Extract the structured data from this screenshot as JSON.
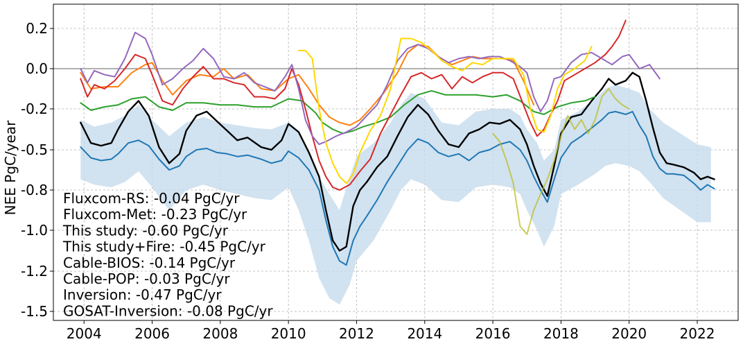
{
  "chart_data": {
    "type": "line",
    "title": "",
    "xlabel": "",
    "ylabel": "NEE PgC/year",
    "xlim": [
      2003.1,
      2023.2
    ],
    "ylim": [
      -1.56,
      0.32
    ],
    "x_ticks": [
      2004,
      2006,
      2008,
      2010,
      2012,
      2014,
      2016,
      2018,
      2020,
      2022
    ],
    "y_ticks": [
      {
        "value": 0.2,
        "label": "0.2"
      },
      {
        "value": 0.0,
        "label": "0.0"
      },
      {
        "value": -0.2,
        "label": "-0.2"
      },
      {
        "value": -0.5,
        "label": "-0.5"
      },
      {
        "value": -0.8,
        "label": "-0.8"
      },
      {
        "value": -1.0,
        "label": "-1.0"
      },
      {
        "value": -1.2,
        "label": "-1.2"
      },
      {
        "value": -1.5,
        "label": "-1.5"
      }
    ],
    "grid": true,
    "zero_line": true,
    "annotations": [
      "Fluxcom-RS: -0.04 PgC/yr",
      "Fluxcom-Met: -0.23 PgC/yr",
      "This study: -0.60 PgC/yr",
      "This study+Fire: -0.45 PgC/yr",
      "Cable-BIOS: -0.14 PgC/yr",
      "Cable-POP: -0.03 PgC/yr",
      "Inversion: -0.47 PgC/yr",
      "GOSAT-Inversion: -0.08 PgC/yr"
    ],
    "band": {
      "color": "#c6dbec",
      "x": [
        2003.9,
        2004.3,
        2004.8,
        2005.2,
        2005.6,
        2006.0,
        2006.5,
        2007.0,
        2007.5,
        2008.0,
        2008.5,
        2009.0,
        2009.5,
        2010.0,
        2010.3,
        2010.6,
        2010.9,
        2011.2,
        2011.5,
        2011.8,
        2012.0,
        2012.5,
        2013.0,
        2013.3,
        2013.6,
        2014.0,
        2014.5,
        2015.0,
        2015.5,
        2016.0,
        2016.5,
        2016.8,
        2017.0,
        2017.3,
        2017.5,
        2017.8,
        2018.0,
        2018.5,
        2019.0,
        2019.3,
        2019.6,
        2020.0,
        2020.3,
        2020.6,
        2021.0,
        2021.5,
        2022.0,
        2022.4
      ],
      "upper": [
        -0.28,
        -0.33,
        -0.3,
        -0.25,
        -0.18,
        -0.28,
        -0.4,
        -0.3,
        -0.26,
        -0.3,
        -0.32,
        -0.34,
        -0.35,
        -0.3,
        -0.38,
        -0.52,
        -0.7,
        -0.82,
        -0.9,
        -0.7,
        -0.55,
        -0.45,
        -0.3,
        -0.18,
        -0.12,
        -0.15,
        -0.3,
        -0.32,
        -0.22,
        -0.2,
        -0.2,
        -0.25,
        -0.35,
        -0.45,
        -0.58,
        -0.5,
        -0.28,
        -0.22,
        -0.15,
        -0.1,
        -0.08,
        -0.1,
        -0.12,
        -0.2,
        -0.3,
        -0.38,
        -0.46,
        -0.48
      ],
      "lower": [
        -0.72,
        -0.76,
        -0.78,
        -0.74,
        -0.66,
        -0.78,
        -0.9,
        -0.8,
        -0.76,
        -0.8,
        -0.82,
        -0.84,
        -0.85,
        -0.78,
        -0.9,
        -1.05,
        -1.25,
        -1.4,
        -1.45,
        -1.3,
        -1.15,
        -1.05,
        -0.9,
        -0.8,
        -0.72,
        -0.76,
        -0.85,
        -0.86,
        -0.78,
        -0.76,
        -0.78,
        -0.82,
        -0.9,
        -1.0,
        -1.08,
        -0.98,
        -0.82,
        -0.76,
        -0.68,
        -0.62,
        -0.6,
        -0.62,
        -0.66,
        -0.74,
        -0.84,
        -0.9,
        -0.96,
        -0.96
      ]
    },
    "series": [
      {
        "color": "#1f77b4",
        "x": [
          2003.9,
          2004.2,
          2004.5,
          2004.8,
          2005.0,
          2005.3,
          2005.6,
          2005.9,
          2006.2,
          2006.5,
          2006.8,
          2007.0,
          2007.3,
          2007.6,
          2007.9,
          2008.2,
          2008.5,
          2008.8,
          2009.2,
          2009.5,
          2009.8,
          2010.0,
          2010.3,
          2010.6,
          2010.9,
          2011.1,
          2011.3,
          2011.5,
          2011.7,
          2011.9,
          2012.1,
          2012.3,
          2012.6,
          2012.9,
          2013.2,
          2013.5,
          2013.8,
          2014.1,
          2014.4,
          2014.7,
          2015.0,
          2015.3,
          2015.6,
          2015.9,
          2016.2,
          2016.5,
          2016.8,
          2017.0,
          2017.2,
          2017.4,
          2017.6,
          2017.8,
          2018.0,
          2018.3,
          2018.6,
          2018.9,
          2019.2,
          2019.4,
          2019.6,
          2019.9,
          2020.1,
          2020.3,
          2020.5,
          2020.7,
          2020.9,
          2021.1,
          2021.3,
          2021.6,
          2021.9,
          2022.1,
          2022.3,
          2022.5
        ],
        "y": [
          -0.48,
          -0.56,
          -0.58,
          -0.57,
          -0.53,
          -0.45,
          -0.43,
          -0.47,
          -0.57,
          -0.65,
          -0.62,
          -0.55,
          -0.5,
          -0.49,
          -0.52,
          -0.53,
          -0.55,
          -0.54,
          -0.57,
          -0.6,
          -0.58,
          -0.51,
          -0.56,
          -0.65,
          -0.8,
          -0.95,
          -1.08,
          -1.15,
          -1.17,
          -1.05,
          -0.98,
          -0.93,
          -0.85,
          -0.74,
          -0.62,
          -0.5,
          -0.42,
          -0.45,
          -0.52,
          -0.55,
          -0.53,
          -0.58,
          -0.52,
          -0.5,
          -0.46,
          -0.44,
          -0.5,
          -0.58,
          -0.7,
          -0.8,
          -0.86,
          -0.72,
          -0.56,
          -0.45,
          -0.4,
          -0.34,
          -0.28,
          -0.23,
          -0.22,
          -0.24,
          -0.22,
          -0.32,
          -0.4,
          -0.55,
          -0.64,
          -0.68,
          -0.68,
          -0.69,
          -0.75,
          -0.8,
          -0.76,
          -0.79
        ]
      },
      {
        "color": "#000000",
        "x": [
          2003.9,
          2004.2,
          2004.5,
          2004.8,
          2005.0,
          2005.3,
          2005.6,
          2005.9,
          2006.2,
          2006.5,
          2006.8,
          2007.0,
          2007.3,
          2007.6,
          2007.9,
          2008.2,
          2008.5,
          2008.8,
          2009.2,
          2009.5,
          2009.8,
          2010.0,
          2010.3,
          2010.6,
          2010.9,
          2011.1,
          2011.3,
          2011.5,
          2011.7,
          2011.9,
          2012.1,
          2012.3,
          2012.6,
          2012.9,
          2013.2,
          2013.5,
          2013.8,
          2014.1,
          2014.4,
          2014.7,
          2015.0,
          2015.3,
          2015.6,
          2015.9,
          2016.2,
          2016.5,
          2016.8,
          2017.0,
          2017.2,
          2017.4,
          2017.6,
          2017.8,
          2018.0,
          2018.3,
          2018.6,
          2018.9,
          2019.2,
          2019.4,
          2019.6,
          2019.9,
          2020.1,
          2020.3,
          2020.5,
          2020.7,
          2020.9,
          2021.1,
          2021.3,
          2021.6,
          2021.9,
          2022.1,
          2022.3,
          2022.5
        ],
        "y": [
          -0.3,
          -0.45,
          -0.47,
          -0.45,
          -0.35,
          -0.22,
          -0.16,
          -0.25,
          -0.48,
          -0.6,
          -0.53,
          -0.36,
          -0.25,
          -0.22,
          -0.29,
          -0.36,
          -0.43,
          -0.41,
          -0.48,
          -0.5,
          -0.43,
          -0.31,
          -0.37,
          -0.52,
          -0.7,
          -0.9,
          -1.05,
          -1.1,
          -1.08,
          -0.88,
          -0.8,
          -0.74,
          -0.63,
          -0.55,
          -0.4,
          -0.26,
          -0.18,
          -0.24,
          -0.36,
          -0.46,
          -0.48,
          -0.38,
          -0.35,
          -0.3,
          -0.31,
          -0.28,
          -0.35,
          -0.46,
          -0.62,
          -0.75,
          -0.83,
          -0.62,
          -0.38,
          -0.26,
          -0.24,
          -0.16,
          -0.1,
          -0.05,
          -0.08,
          -0.06,
          -0.02,
          -0.04,
          -0.16,
          -0.34,
          -0.52,
          -0.6,
          -0.61,
          -0.63,
          -0.67,
          -0.72,
          -0.7,
          -0.72
        ]
      },
      {
        "color": "#2ca02c",
        "x": [
          2003.9,
          2004.2,
          2004.6,
          2005.0,
          2005.4,
          2005.8,
          2006.2,
          2006.6,
          2007.0,
          2007.5,
          2008.0,
          2008.5,
          2009.0,
          2009.5,
          2010.0,
          2010.4,
          2010.8,
          2011.0,
          2011.3,
          2011.6,
          2011.9,
          2012.2,
          2012.6,
          2013.0,
          2013.4,
          2013.8,
          2014.2,
          2014.6,
          2015.0,
          2015.5,
          2016.0,
          2016.4,
          2016.8,
          2017.2,
          2017.5,
          2017.9,
          2018.3,
          2018.7,
          2019.0
        ],
        "y": [
          -0.17,
          -0.21,
          -0.19,
          -0.18,
          -0.15,
          -0.14,
          -0.19,
          -0.21,
          -0.17,
          -0.17,
          -0.18,
          -0.18,
          -0.19,
          -0.19,
          -0.15,
          -0.16,
          -0.23,
          -0.3,
          -0.35,
          -0.38,
          -0.36,
          -0.33,
          -0.3,
          -0.26,
          -0.18,
          -0.13,
          -0.11,
          -0.13,
          -0.13,
          -0.13,
          -0.14,
          -0.13,
          -0.16,
          -0.22,
          -0.24,
          -0.19,
          -0.17,
          -0.16,
          -0.14
        ]
      },
      {
        "color": "#ff7f0e",
        "x": [
          2003.9,
          2004.2,
          2004.6,
          2005.0,
          2005.4,
          2005.8,
          2006.0,
          2006.3,
          2006.6,
          2007.0,
          2007.4,
          2007.8,
          2008.1,
          2008.4,
          2008.8,
          2009.2,
          2009.6,
          2010.0,
          2010.3,
          2010.6,
          2010.9,
          2011.2,
          2011.5,
          2011.8,
          2012.1,
          2012.4,
          2012.8,
          2013.2,
          2013.5,
          2013.8,
          2014.1,
          2014.4,
          2014.8,
          2015.1,
          2015.4,
          2015.7,
          2016.0,
          2016.3,
          2016.6,
          2016.9,
          2017.2
        ],
        "y": [
          -0.02,
          -0.1,
          -0.09,
          -0.09,
          -0.02,
          0.02,
          0.03,
          -0.06,
          -0.13,
          -0.06,
          -0.03,
          -0.04,
          0.0,
          -0.05,
          -0.03,
          -0.1,
          -0.11,
          -0.05,
          -0.03,
          -0.1,
          -0.18,
          -0.26,
          -0.3,
          -0.32,
          -0.28,
          -0.2,
          -0.12,
          -0.02,
          0.08,
          0.12,
          0.11,
          0.06,
          0.02,
          0.04,
          0.06,
          0.05,
          0.05,
          0.05,
          0.04,
          -0.06,
          -0.18
        ]
      },
      {
        "color": "#d62728",
        "x": [
          2003.9,
          2004.1,
          2004.3,
          2004.6,
          2004.9,
          2005.2,
          2005.5,
          2005.8,
          2006.0,
          2006.3,
          2006.6,
          2006.9,
          2007.2,
          2007.5,
          2007.8,
          2008.1,
          2008.4,
          2008.7,
          2009.0,
          2009.3,
          2009.6,
          2009.9,
          2010.1,
          2010.3,
          2010.5,
          2010.7,
          2010.9,
          2011.1,
          2011.3,
          2011.5,
          2011.8,
          2012.1,
          2012.4,
          2012.7,
          2013.0,
          2013.3,
          2013.6,
          2013.9,
          2014.2,
          2014.5,
          2014.8,
          2015.1,
          2015.4,
          2015.7,
          2016.0,
          2016.3,
          2016.6,
          2016.9,
          2017.1,
          2017.3,
          2017.5,
          2017.7,
          2017.9,
          2018.1,
          2018.4,
          2018.7,
          2019.0,
          2019.3,
          2019.5,
          2019.7,
          2019.9
        ],
        "y": [
          -0.05,
          -0.14,
          -0.08,
          -0.1,
          -0.06,
          0.0,
          0.07,
          0.05,
          -0.03,
          -0.16,
          -0.18,
          -0.1,
          -0.04,
          0.01,
          -0.05,
          -0.05,
          -0.07,
          -0.08,
          -0.14,
          -0.14,
          -0.15,
          -0.1,
          0.0,
          -0.08,
          -0.2,
          -0.4,
          -0.58,
          -0.7,
          -0.78,
          -0.8,
          -0.76,
          -0.66,
          -0.57,
          -0.38,
          -0.24,
          -0.13,
          -0.04,
          -0.02,
          -0.05,
          -0.03,
          -0.1,
          -0.04,
          -0.07,
          -0.04,
          -0.02,
          -0.02,
          -0.05,
          -0.18,
          -0.3,
          -0.4,
          -0.35,
          -0.24,
          -0.16,
          -0.06,
          -0.03,
          0.0,
          0.03,
          0.07,
          0.11,
          0.16,
          0.24
        ]
      },
      {
        "color": "#9467bd",
        "x": [
          2003.9,
          2004.1,
          2004.3,
          2004.6,
          2004.9,
          2005.2,
          2005.5,
          2005.8,
          2006.0,
          2006.3,
          2006.6,
          2006.9,
          2007.2,
          2007.5,
          2007.8,
          2008.1,
          2008.4,
          2008.7,
          2009.0,
          2009.3,
          2009.6,
          2009.9,
          2010.1,
          2010.3,
          2010.5,
          2010.7,
          2010.9,
          2011.1,
          2011.4,
          2011.7,
          2012.0,
          2012.3,
          2012.6,
          2012.9,
          2013.2,
          2013.5,
          2013.8,
          2014.1,
          2014.4,
          2014.7,
          2015.0,
          2015.3,
          2015.6,
          2015.9,
          2016.2,
          2016.5,
          2016.8,
          2017.0,
          2017.2,
          2017.4,
          2017.6,
          2017.8,
          2018.0,
          2018.3,
          2018.6,
          2018.9,
          2019.2,
          2019.5,
          2019.8,
          2020.0,
          2020.3,
          2020.6,
          2020.9
        ],
        "y": [
          0.0,
          -0.07,
          -0.01,
          -0.03,
          -0.04,
          0.05,
          0.18,
          0.15,
          0.07,
          -0.08,
          -0.05,
          0.0,
          0.04,
          0.1,
          0.05,
          -0.04,
          -0.05,
          -0.02,
          -0.07,
          -0.09,
          -0.11,
          -0.04,
          0.02,
          -0.1,
          -0.28,
          -0.4,
          -0.46,
          -0.44,
          -0.4,
          -0.37,
          -0.33,
          -0.25,
          -0.18,
          -0.08,
          0.04,
          0.1,
          0.12,
          0.1,
          0.06,
          0.03,
          0.05,
          0.06,
          0.05,
          0.06,
          0.06,
          0.04,
          0.01,
          -0.02,
          -0.14,
          -0.22,
          -0.16,
          -0.05,
          -0.04,
          0.03,
          0.07,
          0.08,
          0.05,
          0.02,
          0.06,
          0.07,
          0.0,
          0.02,
          -0.05
        ]
      },
      {
        "color": "#ffd700",
        "x": [
          2010.3,
          2010.5,
          2010.7,
          2010.9,
          2011.1,
          2011.3,
          2011.5,
          2011.7,
          2011.9,
          2012.1,
          2012.4,
          2012.7,
          2013.0,
          2013.3,
          2013.6,
          2013.9,
          2014.2,
          2014.5,
          2014.8,
          2015.1,
          2015.4,
          2015.7,
          2016.0,
          2016.3,
          2016.6,
          2016.9,
          2017.1,
          2017.3,
          2017.5,
          2017.7,
          2017.9,
          2018.1,
          2018.4,
          2018.7,
          2018.9
        ],
        "y": [
          0.09,
          0.09,
          0.05,
          -0.2,
          -0.45,
          -0.6,
          -0.7,
          -0.75,
          -0.68,
          -0.52,
          -0.36,
          -0.25,
          -0.1,
          0.15,
          0.15,
          0.13,
          0.09,
          0.04,
          0.01,
          -0.01,
          0.03,
          0.02,
          0.05,
          0.05,
          0.05,
          -0.03,
          -0.2,
          -0.35,
          -0.37,
          -0.25,
          -0.1,
          -0.03,
          0.0,
          0.04,
          0.11
        ]
      },
      {
        "color": "#bcbd22",
        "opacity": 0.75,
        "x": [
          2016.0,
          2016.2,
          2016.4,
          2016.6,
          2016.8,
          2017.0,
          2017.2,
          2017.4,
          2017.6,
          2017.8,
          2018.0,
          2018.2,
          2018.4,
          2018.6,
          2018.8,
          2019.0,
          2019.2,
          2019.4,
          2019.6,
          2019.8,
          2020.0
        ],
        "y": [
          -0.38,
          -0.44,
          -0.58,
          -0.75,
          -0.98,
          -1.02,
          -0.9,
          -0.82,
          -0.72,
          -0.58,
          -0.4,
          -0.25,
          -0.35,
          -0.28,
          -0.38,
          -0.28,
          -0.14,
          -0.1,
          -0.15,
          -0.18,
          -0.2
        ]
      }
    ]
  }
}
